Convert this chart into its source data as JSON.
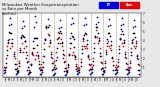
{
  "title": "Milwaukee Weather Evapotranspiration\nvs Rain per Month\n(Inches)",
  "title_fontsize": 2.8,
  "background_color": "#e8e8e8",
  "plot_bg": "#ffffff",
  "legend_labels": [
    "ET",
    "Rain"
  ],
  "legend_colors": [
    "#0000dd",
    "#dd0000"
  ],
  "months": [
    "J",
    "F",
    "M",
    "A",
    "M",
    "J",
    "J",
    "A",
    "S",
    "O",
    "N",
    "D"
  ],
  "n_years": 11,
  "et_values": [
    0.35,
    0.45,
    1.1,
    2.4,
    4.0,
    5.7,
    6.4,
    5.8,
    4.1,
    2.3,
    0.8,
    0.25,
    0.35,
    0.55,
    1.2,
    2.7,
    4.3,
    5.4,
    6.1,
    5.6,
    3.9,
    2.1,
    0.7,
    0.25,
    0.35,
    0.45,
    1.3,
    2.5,
    3.9,
    5.5,
    6.7,
    6.0,
    4.2,
    2.4,
    0.9,
    0.25,
    0.25,
    0.45,
    1.0,
    2.3,
    4.0,
    5.6,
    6.3,
    5.7,
    4.0,
    2.2,
    0.7,
    0.18,
    0.25,
    0.35,
    0.9,
    2.2,
    3.7,
    5.3,
    6.2,
    5.5,
    3.8,
    2.0,
    0.6,
    0.18,
    0.25,
    0.45,
    1.1,
    2.4,
    4.2,
    5.8,
    6.5,
    5.9,
    4.1,
    2.3,
    0.8,
    0.25,
    0.35,
    0.45,
    1.2,
    2.6,
    4.3,
    5.7,
    6.4,
    5.8,
    4.0,
    2.2,
    0.7,
    0.25,
    0.35,
    0.55,
    1.3,
    2.7,
    4.4,
    5.8,
    6.6,
    6.0,
    4.2,
    2.3,
    0.8,
    0.25,
    0.25,
    0.45,
    1.1,
    2.5,
    4.1,
    5.6,
    6.3,
    5.7,
    3.9,
    2.1,
    0.7,
    0.25,
    0.35,
    0.45,
    1.2,
    2.6,
    4.2,
    5.7,
    6.4,
    5.8,
    4.0,
    2.2,
    0.8,
    0.25,
    0.35,
    0.45,
    1.1,
    2.4,
    4.0,
    5.5,
    6.2,
    5.6,
    3.9,
    2.1,
    0.7,
    0.25
  ],
  "rain_values": [
    1.1,
    0.9,
    2.0,
    3.4,
    3.7,
    4.1,
    3.1,
    3.7,
    3.4,
    2.7,
    2.0,
    1.4,
    0.9,
    0.7,
    1.7,
    3.1,
    4.4,
    3.7,
    2.7,
    3.1,
    3.9,
    3.4,
    2.4,
    1.7,
    0.7,
    0.5,
    1.4,
    2.7,
    2.4,
    3.1,
    1.9,
    2.4,
    2.7,
    2.1,
    1.7,
    1.1,
    1.4,
    1.1,
    2.3,
    3.7,
    4.1,
    5.4,
    4.7,
    3.4,
    3.7,
    2.7,
    2.1,
    1.5,
    1.7,
    1.3,
    2.7,
    4.1,
    4.9,
    4.4,
    3.7,
    4.1,
    3.4,
    2.9,
    2.4,
    1.7,
    0.9,
    0.7,
    1.4,
    2.4,
    3.1,
    3.7,
    2.4,
    2.7,
    2.4,
    1.9,
    1.4,
    0.9,
    1.1,
    0.9,
    1.9,
    3.4,
    3.9,
    3.4,
    3.1,
    3.4,
    3.1,
    2.4,
    1.9,
    1.3,
    1.4,
    1.1,
    2.1,
    3.7,
    4.4,
    5.1,
    4.4,
    3.7,
    3.9,
    3.1,
    2.3,
    1.5,
    0.9,
    0.7,
    1.7,
    2.9,
    3.4,
    3.9,
    3.4,
    3.1,
    2.9,
    2.1,
    1.7,
    1.1,
    1.3,
    1.0,
    1.9,
    3.4,
    4.1,
    4.7,
    3.7,
    3.4,
    3.7,
    2.7,
    2.1,
    1.4,
    1.1,
    0.9,
    1.7,
    3.1,
    3.7,
    4.1,
    3.4,
    3.1,
    3.4,
    2.4,
    1.9,
    1.3
  ],
  "black_values": [
    0.7,
    0.7,
    1.5,
    2.9,
    3.85,
    4.95,
    4.75,
    4.75,
    3.75,
    2.5,
    1.4,
    0.85,
    0.625,
    0.625,
    1.45,
    2.9,
    4.35,
    4.55,
    4.45,
    4.35,
    3.95,
    2.75,
    1.55,
    1.025,
    0.525,
    0.475,
    1.35,
    2.6,
    3.15,
    4.3,
    4.3,
    4.2,
    3.45,
    2.25,
    1.35,
    0.675,
    0.825,
    0.775,
    1.65,
    3.0,
    4.15,
    5.5,
    5.5,
    4.55,
    3.85,
    2.45,
    1.45,
    0.855,
    1.0,
    0.875,
    1.8,
    3.15,
    4.3,
    4.85,
    5.0,
    4.85,
    3.65,
    2.45,
    1.55,
    0.94,
    0.575,
    0.575,
    1.25,
    2.45,
    3.65,
    4.75,
    4.45,
    4.35,
    3.25,
    2.15,
    1.15,
    0.575,
    0.725,
    0.675,
    1.55,
    3.0,
    4.15,
    4.55,
    4.75,
    4.65,
    3.55,
    2.3,
    1.35,
    0.825,
    0.875,
    0.825,
    1.75,
    3.2,
    4.45,
    5.45,
    5.5,
    4.85,
    4.05,
    2.65,
    1.55,
    0.925,
    0.575,
    0.575,
    1.45,
    2.7,
    3.75,
    4.75,
    4.85,
    4.45,
    3.45,
    2.15,
    1.25,
    0.675,
    0.825,
    0.725,
    1.55,
    3.0,
    4.15,
    5.2,
    5.05,
    4.65,
    3.85,
    2.45,
    1.45,
    0.875,
    0.725,
    0.675,
    1.45,
    2.75,
    3.85,
    4.8,
    4.8,
    4.35,
    3.65,
    2.25,
    1.35,
    0.775
  ],
  "ylim": [
    0,
    7
  ],
  "ytick_values": [
    1,
    2,
    3,
    4,
    5,
    6,
    7
  ],
  "marker_size": 1.5,
  "et_color": "#0000cc",
  "rain_color": "#cc0000",
  "black_color": "#000000",
  "grid_color": "#888888",
  "vline_positions": [
    12,
    24,
    36,
    48,
    60,
    72,
    84,
    96,
    108,
    120
  ]
}
